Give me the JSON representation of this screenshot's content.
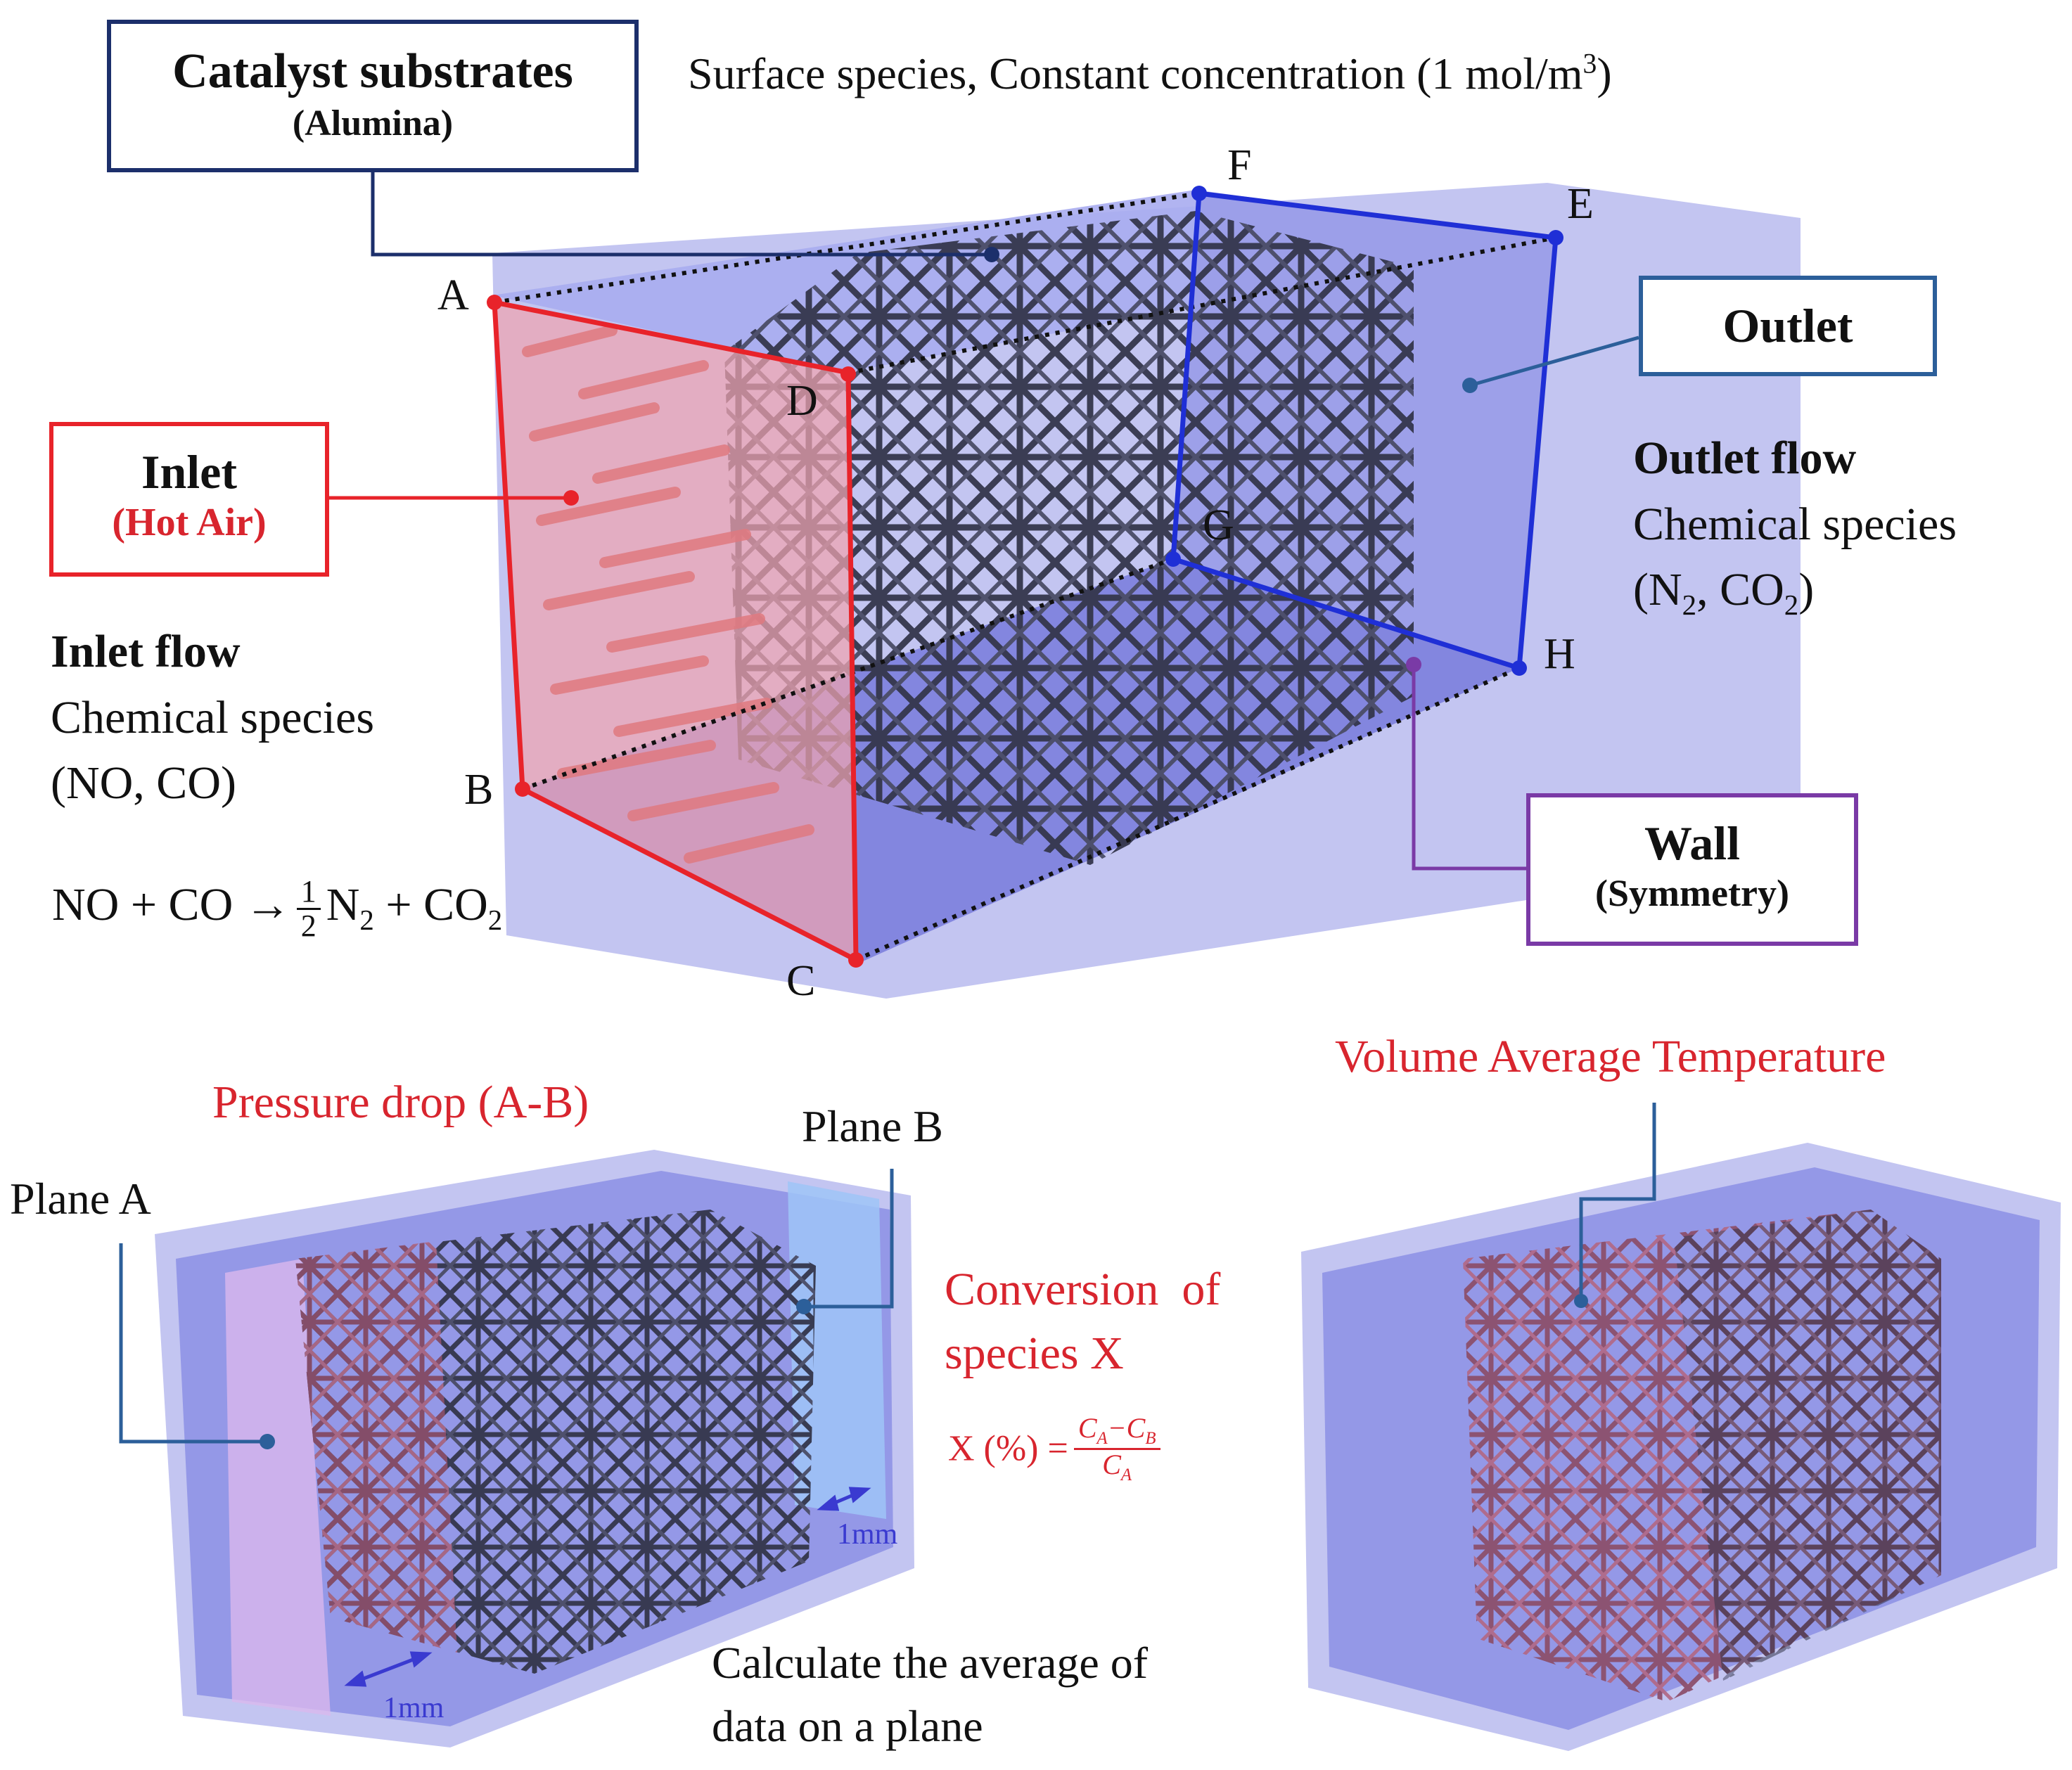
{
  "top": {
    "catalyst_box": {
      "title": "Catalyst substrates",
      "subtitle": "(Alumina)"
    },
    "surface_note": "Surface species, Constant concentration (1 mol/m",
    "surface_note_sup": "3",
    "surface_note_end": ")",
    "inlet_box": {
      "title": "Inlet",
      "subtitle": "(Hot Air)"
    },
    "outlet_box": {
      "title": "Outlet"
    },
    "wall_box": {
      "title": "Wall",
      "subtitle": "(Symmetry)"
    },
    "inlet_flow": {
      "heading": "Inlet flow",
      "line1": "Chemical species",
      "line2": "(NO, CO)"
    },
    "outlet_flow": {
      "heading": "Outlet flow",
      "line1": "Chemical species",
      "line2_pre": "(N",
      "line2_sub1": "2",
      "line2_mid": ", CO",
      "line2_sub2": "2",
      "line2_end": ")"
    },
    "reaction": {
      "lhs": "NO + CO →",
      "frac_num": "1",
      "frac_den": "2",
      "p1": "N",
      "p1_sub": "2",
      "mid": " + CO",
      "p2_sub": "2"
    },
    "points": {
      "A": "A",
      "B": "B",
      "C": "C",
      "D": "D",
      "E": "E",
      "F": "F",
      "G": "G",
      "H": "H"
    }
  },
  "bottom_left": {
    "pressure_drop": "Pressure drop (A-B)",
    "plane_a": "Plane A",
    "plane_b": "Plane B",
    "dim_1": "1mm",
    "dim_2": "1mm",
    "conversion_line1": "Conversion  of",
    "conversion_line2": "species X",
    "formula_lhs": "X (%) =",
    "formula_num": "Cₐ−Cʙ",
    "formula_num_a": "C",
    "formula_num_a_sub": "A",
    "formula_num_mid": "−C",
    "formula_num_b_sub": "B",
    "formula_den": "C",
    "formula_den_sub": "A",
    "calc_line1": "Calculate the average of",
    "calc_line2": "data on a plane"
  },
  "bottom_right": {
    "volume_avg": "Volume Average Temperature"
  },
  "colors": {
    "inlet": "#e8232a",
    "outlet": "#1f2fd6",
    "wall": "#7a3aa6",
    "catalyst": "#1c2f6b",
    "leader": "#2c5f9a",
    "dim": "#3a3ad0",
    "box_fill": "#8c8fe6",
    "lattice": "#3a3c52"
  }
}
